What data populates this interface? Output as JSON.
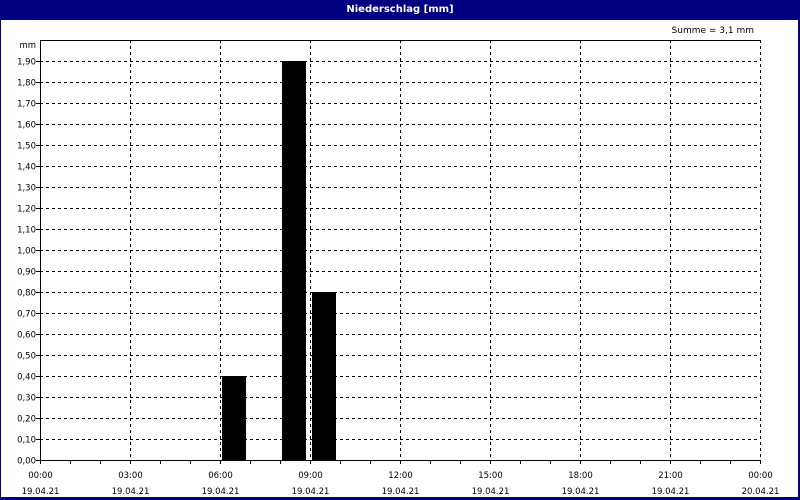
{
  "window": {
    "title": "Niederschlag [mm]",
    "title_bar_color": "#000080"
  },
  "summary": "Summe = 3,1 mm",
  "chart_data": {
    "type": "bar",
    "title": "Niederschlag [mm]",
    "ylabel": "mm",
    "ylim": [
      0,
      2.0
    ],
    "ytick_labels": [
      "0,00",
      "0,10",
      "0,20",
      "0,30",
      "0,40",
      "0,50",
      "0,60",
      "0,70",
      "0,80",
      "0,90",
      "1,00",
      "1,10",
      "1,20",
      "1,30",
      "1,40",
      "1,50",
      "1,60",
      "1,70",
      "1,80",
      "1,90"
    ],
    "xlim": [
      "19.04.21 00:00",
      "20.04.21 00:00"
    ],
    "xtick_labels": [
      {
        "time": "00:00",
        "date": "19.04.21"
      },
      {
        "time": "03:00",
        "date": "19.04.21"
      },
      {
        "time": "06:00",
        "date": "19.04.21"
      },
      {
        "time": "09:00",
        "date": "19.04.21"
      },
      {
        "time": "12:00",
        "date": "19.04.21"
      },
      {
        "time": "15:00",
        "date": "19.04.21"
      },
      {
        "time": "18:00",
        "date": "19.04.21"
      },
      {
        "time": "21:00",
        "date": "19.04.21"
      },
      {
        "time": "00:00",
        "date": "20.04.21"
      }
    ],
    "bars": [
      {
        "start": "06:00",
        "end": "07:00",
        "value": 0.4
      },
      {
        "start": "08:00",
        "end": "09:00",
        "value": 1.9
      },
      {
        "start": "09:00",
        "end": "10:00",
        "value": 0.8
      }
    ],
    "bar_color": "#000000",
    "grid": true
  }
}
